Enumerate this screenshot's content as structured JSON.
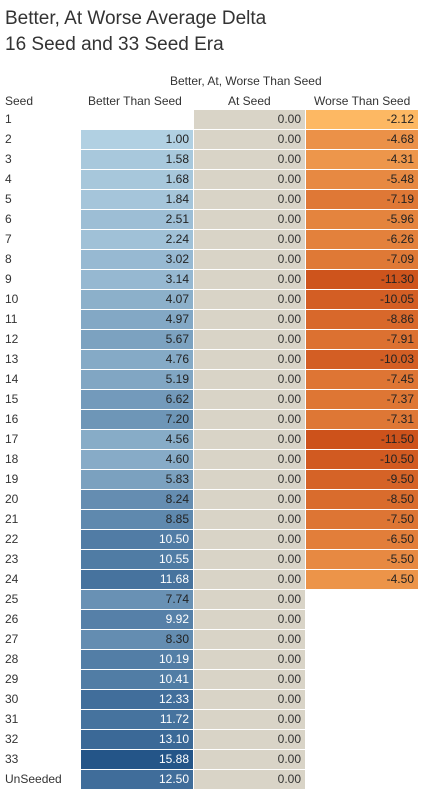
{
  "title_line1": "Better, At Worse Average Delta",
  "title_line2": "16 Seed and 33 Seed Era",
  "super_header": "Better, At, Worse Than Seed",
  "columns": {
    "seed": "Seed",
    "better": "Better Than Seed",
    "at": "At Seed",
    "worse": "Worse Than Seed"
  },
  "chart_data": {
    "type": "table",
    "title": "Better, At Worse Average Delta",
    "subtitle": "16 Seed and 33 Seed Era",
    "rows": [
      {
        "seed": "1",
        "better": null,
        "at": "0.00",
        "worse": "-2.12"
      },
      {
        "seed": "2",
        "better": "1.00",
        "at": "0.00",
        "worse": "-4.68"
      },
      {
        "seed": "3",
        "better": "1.58",
        "at": "0.00",
        "worse": "-4.31"
      },
      {
        "seed": "4",
        "better": "1.68",
        "at": "0.00",
        "worse": "-5.48"
      },
      {
        "seed": "5",
        "better": "1.84",
        "at": "0.00",
        "worse": "-7.19"
      },
      {
        "seed": "6",
        "better": "2.51",
        "at": "0.00",
        "worse": "-5.96"
      },
      {
        "seed": "7",
        "better": "2.24",
        "at": "0.00",
        "worse": "-6.26"
      },
      {
        "seed": "8",
        "better": "3.02",
        "at": "0.00",
        "worse": "-7.09"
      },
      {
        "seed": "9",
        "better": "3.14",
        "at": "0.00",
        "worse": "-11.30"
      },
      {
        "seed": "10",
        "better": "4.07",
        "at": "0.00",
        "worse": "-10.05"
      },
      {
        "seed": "11",
        "better": "4.97",
        "at": "0.00",
        "worse": "-8.86"
      },
      {
        "seed": "12",
        "better": "5.67",
        "at": "0.00",
        "worse": "-7.91"
      },
      {
        "seed": "13",
        "better": "4.76",
        "at": "0.00",
        "worse": "-10.03"
      },
      {
        "seed": "14",
        "better": "5.19",
        "at": "0.00",
        "worse": "-7.45"
      },
      {
        "seed": "15",
        "better": "6.62",
        "at": "0.00",
        "worse": "-7.37"
      },
      {
        "seed": "16",
        "better": "7.20",
        "at": "0.00",
        "worse": "-7.31"
      },
      {
        "seed": "17",
        "better": "4.56",
        "at": "0.00",
        "worse": "-11.50"
      },
      {
        "seed": "18",
        "better": "4.60",
        "at": "0.00",
        "worse": "-10.50"
      },
      {
        "seed": "19",
        "better": "5.83",
        "at": "0.00",
        "worse": "-9.50"
      },
      {
        "seed": "20",
        "better": "8.24",
        "at": "0.00",
        "worse": "-8.50"
      },
      {
        "seed": "21",
        "better": "8.85",
        "at": "0.00",
        "worse": "-7.50"
      },
      {
        "seed": "22",
        "better": "10.50",
        "at": "0.00",
        "worse": "-6.50"
      },
      {
        "seed": "23",
        "better": "10.55",
        "at": "0.00",
        "worse": "-5.50"
      },
      {
        "seed": "24",
        "better": "11.68",
        "at": "0.00",
        "worse": "-4.50"
      },
      {
        "seed": "25",
        "better": "7.74",
        "at": "0.00",
        "worse": null
      },
      {
        "seed": "26",
        "better": "9.92",
        "at": "0.00",
        "worse": null
      },
      {
        "seed": "27",
        "better": "8.30",
        "at": "0.00",
        "worse": null
      },
      {
        "seed": "28",
        "better": "10.19",
        "at": "0.00",
        "worse": null
      },
      {
        "seed": "29",
        "better": "10.41",
        "at": "0.00",
        "worse": null
      },
      {
        "seed": "30",
        "better": "12.33",
        "at": "0.00",
        "worse": null
      },
      {
        "seed": "31",
        "better": "11.72",
        "at": "0.00",
        "worse": null
      },
      {
        "seed": "32",
        "better": "13.10",
        "at": "0.00",
        "worse": null
      },
      {
        "seed": "33",
        "better": "15.88",
        "at": "0.00",
        "worse": null
      },
      {
        "seed": "UnSeeded",
        "better": "12.50",
        "at": "0.00",
        "worse": null
      }
    ]
  }
}
